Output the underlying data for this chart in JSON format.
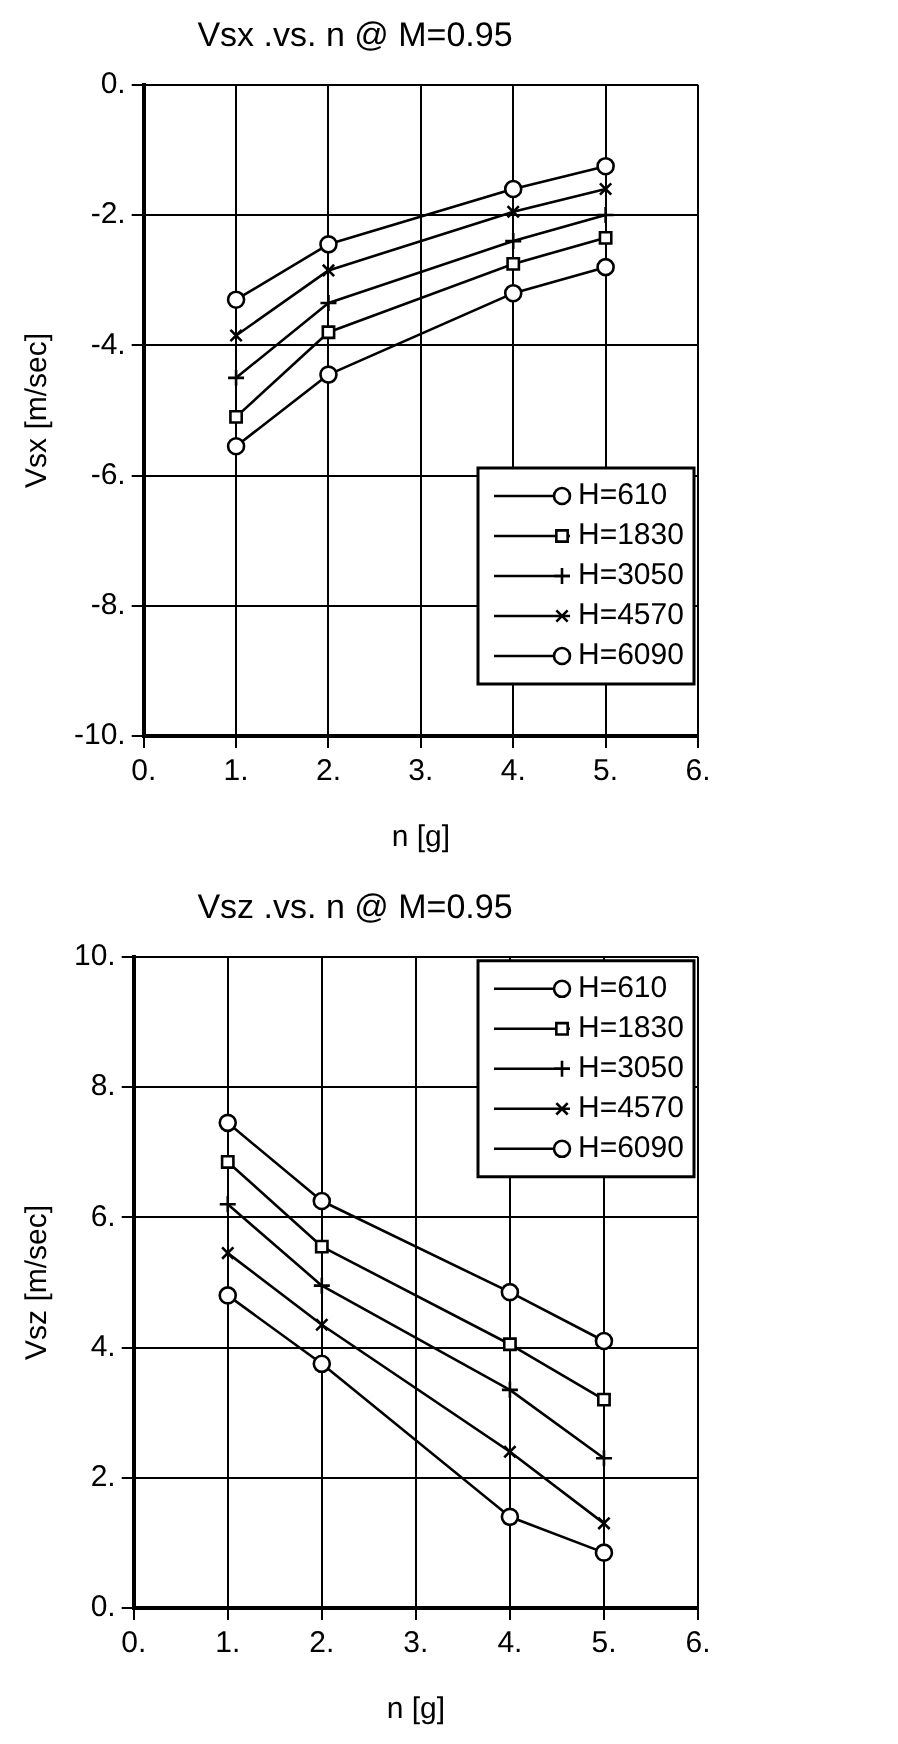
{
  "chart_data": [
    {
      "type": "line",
      "title": "Vsx .vs. n @ M=0.95",
      "xlabel": "n [g]",
      "ylabel": "Vsx [m/sec]",
      "x": [
        1,
        2,
        4,
        5
      ],
      "xlim": [
        0,
        6
      ],
      "xticks": [
        {
          "value": 0,
          "label": "0."
        },
        {
          "value": 1,
          "label": "1."
        },
        {
          "value": 2,
          "label": "2."
        },
        {
          "value": 3,
          "label": "3."
        },
        {
          "value": 4,
          "label": "4."
        },
        {
          "value": 5,
          "label": "5."
        },
        {
          "value": 6,
          "label": "6."
        }
      ],
      "ylim": [
        -10,
        0
      ],
      "yticks": [
        {
          "value": -10,
          "label": "-10."
        },
        {
          "value": -8,
          "label": "-8."
        },
        {
          "value": -6,
          "label": "-6."
        },
        {
          "value": -4,
          "label": "-4."
        },
        {
          "value": -2,
          "label": "-2."
        },
        {
          "value": 0,
          "label": "0."
        }
      ],
      "grid": true,
      "legend": "bottom right",
      "line_style": "solid",
      "series": [
        {
          "name": "H=610",
          "color": "#000000",
          "marker": "circle",
          "values": [
            -5.55,
            -4.45,
            -3.2,
            -2.8
          ]
        },
        {
          "name": "H=1830",
          "color": "#000000",
          "marker": "square",
          "values": [
            -5.1,
            -3.8,
            -2.75,
            -2.35
          ]
        },
        {
          "name": "H=3050",
          "color": "#000000",
          "marker": "plus",
          "values": [
            -4.5,
            -3.35,
            -2.4,
            -2.0
          ]
        },
        {
          "name": "H=4570",
          "color": "#000000",
          "marker": "cross",
          "values": [
            -3.85,
            -2.85,
            -1.95,
            -1.6
          ]
        },
        {
          "name": "H=6090",
          "color": "#000000",
          "marker": "circle",
          "values": [
            -3.3,
            -2.45,
            -1.6,
            -1.25
          ]
        }
      ]
    },
    {
      "type": "line",
      "title": "Vsz .vs. n @ M=0.95",
      "xlabel": "n [g]",
      "ylabel": "Vsz [m/sec]",
      "x": [
        1,
        2,
        4,
        5
      ],
      "xlim": [
        0,
        6
      ],
      "xticks": [
        {
          "value": 0,
          "label": "0."
        },
        {
          "value": 1,
          "label": "1."
        },
        {
          "value": 2,
          "label": "2."
        },
        {
          "value": 3,
          "label": "3."
        },
        {
          "value": 4,
          "label": "4."
        },
        {
          "value": 5,
          "label": "5."
        },
        {
          "value": 6,
          "label": "6."
        }
      ],
      "ylim": [
        0,
        10
      ],
      "yticks": [
        {
          "value": 0,
          "label": "0."
        },
        {
          "value": 2,
          "label": "2."
        },
        {
          "value": 4,
          "label": "4."
        },
        {
          "value": 6,
          "label": "6."
        },
        {
          "value": 8,
          "label": "8."
        },
        {
          "value": 10,
          "label": "10."
        }
      ],
      "grid": true,
      "legend": "top right",
      "line_style": "solid",
      "series": [
        {
          "name": "H=610",
          "color": "#000000",
          "marker": "circle",
          "values": [
            7.45,
            6.25,
            4.85,
            4.1
          ]
        },
        {
          "name": "H=1830",
          "color": "#000000",
          "marker": "square",
          "values": [
            6.85,
            5.55,
            4.05,
            3.2
          ]
        },
        {
          "name": "H=3050",
          "color": "#000000",
          "marker": "plus",
          "values": [
            6.2,
            4.95,
            3.35,
            2.3
          ]
        },
        {
          "name": "H=4570",
          "color": "#000000",
          "marker": "cross",
          "values": [
            5.45,
            4.35,
            2.4,
            1.3
          ]
        },
        {
          "name": "H=6090",
          "color": "#000000",
          "marker": "circle",
          "values": [
            4.8,
            3.75,
            1.4,
            0.85
          ]
        }
      ]
    }
  ]
}
